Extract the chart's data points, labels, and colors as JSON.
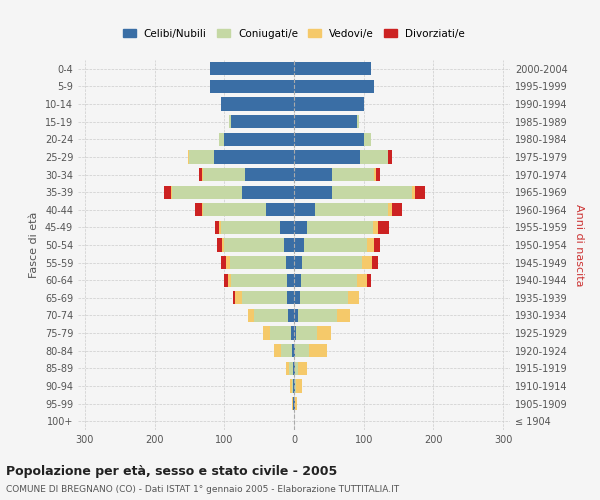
{
  "age_groups": [
    "100+",
    "95-99",
    "90-94",
    "85-89",
    "80-84",
    "75-79",
    "70-74",
    "65-69",
    "60-64",
    "55-59",
    "50-54",
    "45-49",
    "40-44",
    "35-39",
    "30-34",
    "25-29",
    "20-24",
    "15-19",
    "10-14",
    "5-9",
    "0-4"
  ],
  "birth_years": [
    "≤ 1904",
    "1905-1909",
    "1910-1914",
    "1915-1919",
    "1920-1924",
    "1925-1929",
    "1930-1934",
    "1935-1939",
    "1940-1944",
    "1945-1949",
    "1950-1954",
    "1955-1959",
    "1960-1964",
    "1965-1969",
    "1970-1974",
    "1975-1979",
    "1980-1984",
    "1985-1989",
    "1990-1994",
    "1995-1999",
    "2000-2004"
  ],
  "colors": {
    "celibi": "#3a6ea5",
    "coniugati": "#c5d8a4",
    "vedovi": "#f5c96a",
    "divorziati": "#cc2222"
  },
  "males": {
    "celibi": [
      0,
      1,
      1,
      2,
      3,
      5,
      8,
      10,
      10,
      12,
      15,
      20,
      40,
      75,
      70,
      115,
      100,
      90,
      105,
      120,
      120
    ],
    "coniugati": [
      0,
      1,
      2,
      5,
      15,
      30,
      50,
      65,
      80,
      80,
      85,
      85,
      90,
      100,
      60,
      35,
      8,
      3,
      0,
      0,
      0
    ],
    "vedovi": [
      0,
      1,
      3,
      5,
      10,
      10,
      8,
      10,
      5,
      5,
      3,
      3,
      2,
      2,
      2,
      2,
      0,
      0,
      0,
      0,
      0
    ],
    "divorziati": [
      0,
      0,
      0,
      0,
      0,
      0,
      0,
      2,
      5,
      8,
      8,
      5,
      10,
      10,
      5,
      0,
      0,
      0,
      0,
      0,
      0
    ]
  },
  "females": {
    "nubili": [
      0,
      1,
      1,
      2,
      2,
      3,
      6,
      8,
      10,
      12,
      15,
      18,
      30,
      55,
      55,
      95,
      100,
      90,
      100,
      115,
      110
    ],
    "coniugati": [
      0,
      0,
      2,
      4,
      20,
      30,
      55,
      70,
      80,
      85,
      90,
      95,
      105,
      115,
      60,
      40,
      10,
      3,
      0,
      0,
      0
    ],
    "vedovi": [
      0,
      3,
      8,
      12,
      25,
      20,
      20,
      15,
      15,
      15,
      10,
      8,
      5,
      3,
      3,
      0,
      0,
      0,
      0,
      0,
      0
    ],
    "divorziati": [
      0,
      0,
      0,
      0,
      0,
      0,
      0,
      0,
      5,
      8,
      8,
      15,
      15,
      15,
      5,
      5,
      0,
      0,
      0,
      0,
      0
    ]
  },
  "xlim": 310,
  "title": "Popolazione per età, sesso e stato civile - 2005",
  "subtitle": "COMUNE DI BREGNANO (CO) - Dati ISTAT 1° gennaio 2005 - Elaborazione TUTTITALIA.IT",
  "ylabel_left": "Fasce di età",
  "ylabel_right": "Anni di nascita",
  "bg_color": "#f5f5f5",
  "plot_bg": "#f5f5f5"
}
